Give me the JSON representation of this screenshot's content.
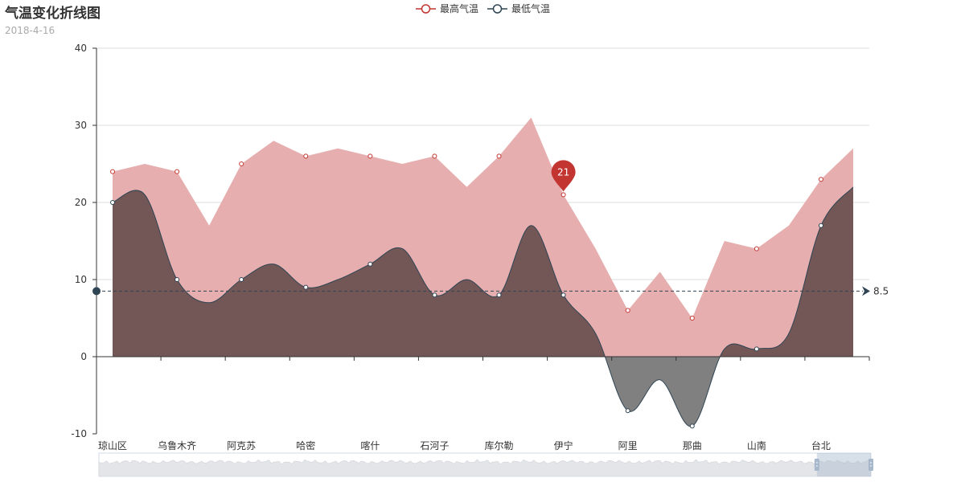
{
  "chart_data": {
    "type": "line",
    "title": "气温变化折线图",
    "subtitle": "2018-4-16",
    "categories": [
      "琼山区",
      "",
      "乌鲁木齐",
      "",
      "阿克苏",
      "",
      "哈密",
      "",
      "喀什",
      "",
      "石河子",
      "",
      "库尔勒",
      "",
      "伊宁",
      "",
      "阿里",
      "",
      "那曲",
      "",
      "山南",
      "",
      "台北",
      ""
    ],
    "x_tick_labels": [
      "琼山区",
      "乌鲁木齐",
      "阿克苏",
      "哈密",
      "喀什",
      "石河子",
      "库尔勒",
      "伊宁",
      "阿里",
      "那曲",
      "山南",
      "台北"
    ],
    "ylim": [
      -10,
      40
    ],
    "y_ticks": [
      -10,
      0,
      10,
      20,
      30,
      40
    ],
    "series": [
      {
        "name": "最高气温",
        "color": "#c23531",
        "area_color": "#e6aeae",
        "smooth": false,
        "values": [
          24,
          25,
          24,
          17,
          25,
          28,
          26,
          27,
          26,
          25,
          26,
          22,
          26,
          31,
          21,
          14,
          6,
          11,
          5,
          15,
          14,
          17,
          23,
          27
        ]
      },
      {
        "name": "最低气温",
        "color": "#2f4554",
        "area_color": "#735757",
        "negative_area_color": "#808080",
        "smooth": true,
        "values": [
          20,
          21,
          10,
          7,
          10,
          12,
          9,
          10,
          12,
          14,
          8,
          10,
          8,
          17,
          8,
          3,
          -7,
          -3,
          -9,
          1,
          1,
          3,
          17,
          22
        ]
      }
    ],
    "mark_point": {
      "series": "最高气温",
      "category_index": 14,
      "value": 21,
      "label": "21"
    },
    "mark_line": {
      "series": "最低气温",
      "type": "average",
      "value": 8.5,
      "label": "8.5"
    },
    "legend_position": "top-center",
    "grid": true,
    "data_zoom": {
      "start_fraction": 0.93,
      "end_fraction": 1.0
    }
  }
}
